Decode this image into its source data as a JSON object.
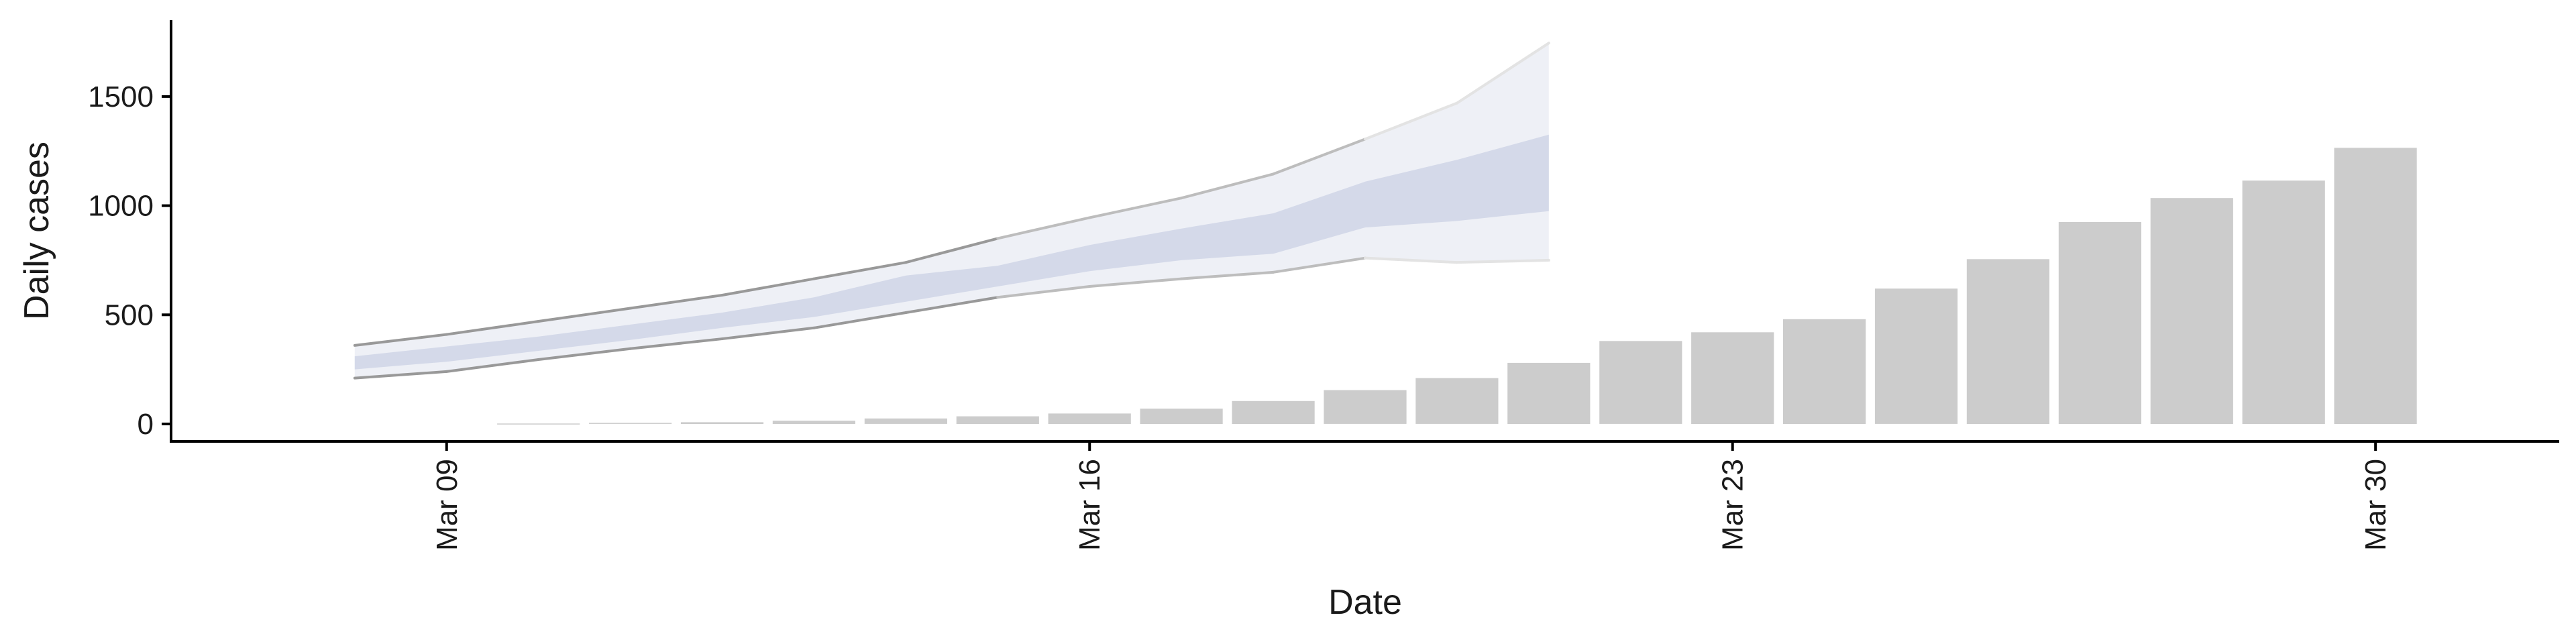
{
  "chart_data": {
    "type": "bar",
    "xlabel": "Date",
    "ylabel": "Daily cases",
    "x_ticks": [
      {
        "date": "2020-03-09",
        "label": "Mar 09"
      },
      {
        "date": "2020-03-16",
        "label": "Mar 16"
      },
      {
        "date": "2020-03-23",
        "label": "Mar 23"
      },
      {
        "date": "2020-03-30",
        "label": "Mar 30"
      }
    ],
    "y_ticks": [
      0,
      500,
      1000,
      1500
    ],
    "xlim": [
      "2020-03-06",
      "2020-04-01"
    ],
    "ylim": [
      -80,
      1850
    ],
    "grid": false,
    "legend": "none",
    "bars": {
      "color": "#cccccc",
      "dates": [
        "2020-03-10",
        "2020-03-11",
        "2020-03-12",
        "2020-03-13",
        "2020-03-14",
        "2020-03-15",
        "2020-03-16",
        "2020-03-17",
        "2020-03-18",
        "2020-03-19",
        "2020-03-20",
        "2020-03-21",
        "2020-03-22",
        "2020-03-23",
        "2020-03-24",
        "2020-03-25",
        "2020-03-26",
        "2020-03-27",
        "2020-03-28",
        "2020-03-29",
        "2020-03-30"
      ],
      "values": [
        2,
        5,
        8,
        15,
        25,
        35,
        48,
        70,
        105,
        155,
        210,
        280,
        380,
        420,
        480,
        620,
        755,
        925,
        1035,
        1115,
        1265
      ]
    },
    "ribbon": {
      "dates": [
        "2020-03-08",
        "2020-03-09",
        "2020-03-10",
        "2020-03-11",
        "2020-03-12",
        "2020-03-13",
        "2020-03-14",
        "2020-03-15",
        "2020-03-16",
        "2020-03-17",
        "2020-03-18",
        "2020-03-19",
        "2020-03-20",
        "2020-03-21"
      ],
      "outer_low": [
        210,
        240,
        295,
        345,
        390,
        440,
        510,
        580,
        630,
        665,
        695,
        760,
        740,
        750
      ],
      "outer_high": [
        360,
        410,
        470,
        530,
        590,
        665,
        740,
        850,
        945,
        1035,
        1145,
        1305,
        1470,
        1745
      ],
      "inner_low": [
        250,
        285,
        335,
        385,
        440,
        490,
        560,
        630,
        700,
        750,
        780,
        900,
        930,
        975
      ],
      "inner_high": [
        310,
        355,
        400,
        455,
        510,
        580,
        680,
        725,
        820,
        895,
        965,
        1110,
        1210,
        1325
      ],
      "outer_line_colors": [
        "#999999",
        "#bdbdbd",
        "#e3e3e3"
      ],
      "outer_fill": "#eef0f6",
      "inner_fill": "#cfd5e6"
    }
  }
}
